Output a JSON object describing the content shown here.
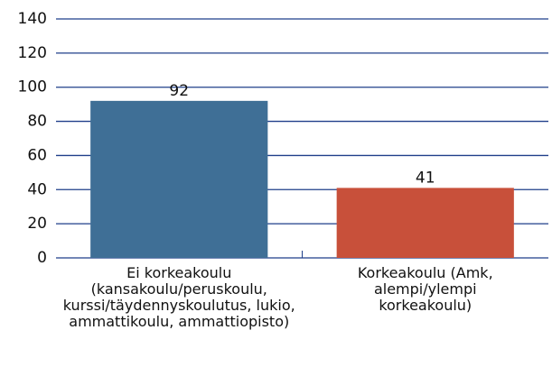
{
  "chart_data": {
    "type": "bar",
    "categories": [
      "Ei korkeakoulu (kansakoulu/peruskoulu, kurssi/täydennyskoulutus, lukio, ammattikoulu, ammattiopisto)",
      "Korkeakoulu (Amk, alempi/ylempi korkeakoulu)"
    ],
    "values": [
      92,
      41
    ],
    "colors": [
      "#3f6f96",
      "#c8503a"
    ],
    "ylim": [
      0,
      140
    ],
    "yticks": [
      0,
      20,
      40,
      60,
      80,
      100,
      120,
      140
    ],
    "grid": true
  }
}
